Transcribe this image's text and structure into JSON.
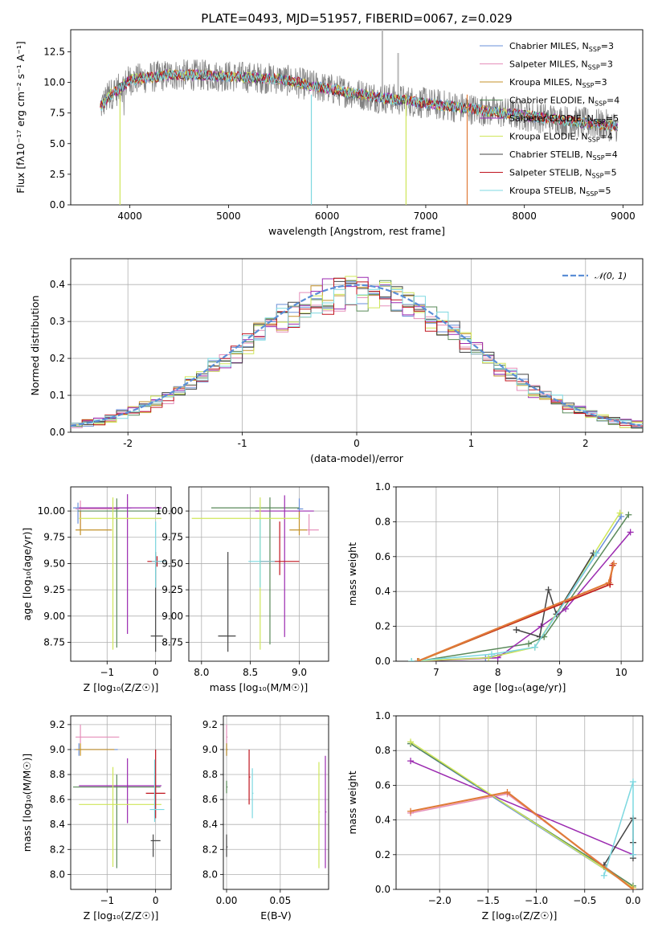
{
  "title": "PLATE=0493, MJD=51957, FIBERID=0067, z=0.029",
  "colors": {
    "Chabrier MILES": "#6a8fd8",
    "Salpeter MILES": "#e58fba",
    "Kroupa MILES": "#c4922a",
    "Chabrier ELODIE": "#5a8a5a",
    "Salpeter ELODIE": "#9b2ab0",
    "Kroupa ELODIE": "#cfe65a",
    "Chabrier STELIB": "#444444",
    "Salpeter STELIB": "#c0141e",
    "Kroupa STELIB": "#7dd8e0",
    "data": "#808080",
    "orange": "#e07b39",
    "gauss": "#5b8ed6"
  },
  "chart_data": [
    {
      "type": "line",
      "xlabel": "wavelength [Angstrom, rest frame]",
      "ylabel": "Flux [fλ10⁻¹⁷ erg cm⁻² s⁻¹ A⁻¹]",
      "xlim": [
        3400,
        9200
      ],
      "ylim": [
        0,
        14.3
      ],
      "xticks": [
        4000,
        5000,
        6000,
        7000,
        8000,
        9000
      ],
      "yticks": [
        0.0,
        2.5,
        5.0,
        7.5,
        10.0,
        12.5
      ],
      "ytick_labels": [
        "0.0",
        "2.5",
        "5.0",
        "7.5",
        "10.0",
        "12.5"
      ],
      "grid": false,
      "legend_position": "top-right",
      "legend": [
        {
          "name": "Chabrier MILES",
          "nssp": "3"
        },
        {
          "name": "Salpeter MILES",
          "nssp": "3"
        },
        {
          "name": "Kroupa MILES",
          "nssp": "3"
        },
        {
          "name": "Chabrier ELODIE",
          "nssp": "4"
        },
        {
          "name": "Salpeter ELODIE",
          "nssp": "5"
        },
        {
          "name": "Kroupa ELODIE",
          "nssp": "4"
        },
        {
          "name": "Chabrier STELIB",
          "nssp": "4"
        },
        {
          "name": "Salpeter STELIB",
          "nssp": "5"
        },
        {
          "name": "Kroupa STELIB",
          "nssp": "5"
        }
      ],
      "model_anchor": {
        "x": [
          3700,
          3800,
          3900,
          4000,
          4200,
          4400,
          4700,
          5000,
          5500,
          6000,
          6500,
          7000,
          7500,
          8000,
          8500,
          8950
        ],
        "y": [
          8.0,
          9.0,
          9.5,
          10.2,
          10.4,
          10.6,
          10.6,
          10.5,
          10.3,
          9.5,
          8.8,
          8.3,
          7.8,
          7.3,
          6.8,
          6.4
        ]
      },
      "dips": [
        {
          "series": "Kroupa ELODIE",
          "x": 3900,
          "y": 0
        },
        {
          "series": "Kroupa STELIB",
          "x": 5840,
          "y": 0
        },
        {
          "series": "Kroupa ELODIE",
          "x": 6800,
          "y": 0
        },
        {
          "series": "orange",
          "x": 7420,
          "y": 0
        }
      ]
    },
    {
      "type": "histogram",
      "xlabel": "(data-model)/error",
      "ylabel": "Normed distribution",
      "xlim": [
        -2.5,
        2.5
      ],
      "ylim": [
        0,
        0.47
      ],
      "xticks": [
        -2,
        -1,
        0,
        1,
        2
      ],
      "yticks": [
        0.0,
        0.1,
        0.2,
        0.3,
        0.4
      ],
      "ytick_labels": [
        "0.0",
        "0.1",
        "0.2",
        "0.3",
        "0.4"
      ],
      "grid": true,
      "legend": "𝒩(0, 1)",
      "legend_position": "top-right",
      "bin_width": 0.1,
      "curve": {
        "type": "gaussian",
        "mu": 0,
        "sigma": 1
      }
    },
    {
      "type": "errorbar",
      "xlabel": "Z [log₁₀(Z/Z☉)]",
      "ylabel": "age  [log₁₀(age/yr)]",
      "xlim": [
        -1.75,
        0.32
      ],
      "ylim": [
        8.57,
        10.23
      ],
      "xticks": [
        -1,
        0
      ],
      "xtick_labels": [
        "−1",
        "0"
      ],
      "yticks": [
        8.75,
        9.0,
        9.25,
        9.5,
        9.75,
        10.0
      ],
      "ytick_labels": [
        "8.75",
        "9.00",
        "9.25",
        "9.50",
        "9.75",
        "10.00"
      ],
      "grid": true,
      "points": [
        {
          "s": "Chabrier MILES",
          "x": -1.6,
          "y": 10.03,
          "xerr": [
            0.1,
            1.1
          ],
          "yerr": [
            0.15,
            0.05
          ]
        },
        {
          "s": "Salpeter MILES",
          "x": -1.55,
          "y": 10.02,
          "xerr": [
            0.1,
            0.8
          ],
          "yerr": [
            0.2,
            0.08
          ]
        },
        {
          "s": "Kroupa MILES",
          "x": -1.55,
          "y": 9.82,
          "xerr": [
            0.1,
            0.65
          ],
          "yerr": [
            0.05,
            0.18
          ]
        },
        {
          "s": "Chabrier ELODIE",
          "x": -0.8,
          "y": 10.0,
          "xerr": [
            0.8,
            0.9
          ],
          "yerr": [
            1.3,
            0.12
          ]
        },
        {
          "s": "Salpeter ELODIE",
          "x": -0.58,
          "y": 10.03,
          "xerr": [
            1.0,
            0.7
          ],
          "yerr": [
            1.2,
            0.13
          ]
        },
        {
          "s": "Kroupa ELODIE",
          "x": -0.88,
          "y": 9.93,
          "xerr": [
            0.7,
            1.0
          ],
          "yerr": [
            1.25,
            0.2
          ]
        },
        {
          "s": "Chabrier STELIB",
          "x": 0.0,
          "y": 8.81,
          "xerr": [
            0.1,
            0.15
          ],
          "yerr": [
            0.15,
            0.8
          ]
        },
        {
          "s": "Salpeter STELIB",
          "x": 0.03,
          "y": 9.52,
          "xerr": [
            0.2,
            0.2
          ],
          "yerr": [
            0.05,
            0.05
          ]
        },
        {
          "s": "Kroupa STELIB",
          "x": 0.0,
          "y": 9.52,
          "xerr": [
            0.08,
            0.22
          ],
          "yerr": [
            0.25,
            0.38
          ]
        }
      ]
    },
    {
      "type": "errorbar",
      "xlabel": "mass [log₁₀(M/M☉)]",
      "xlim": [
        7.87,
        9.3
      ],
      "ylim": [
        8.57,
        10.23
      ],
      "xticks": [
        8.0,
        8.5,
        9.0
      ],
      "xtick_labels": [
        "8.0",
        "8.5",
        "9.0"
      ],
      "yticks": [
        8.75,
        9.0,
        9.25,
        9.5,
        9.75,
        10.0
      ],
      "ytick_labels": [
        "8.75",
        "9.00",
        "9.25",
        "9.50",
        "9.75",
        "10.00"
      ],
      "grid": true,
      "points": [
        {
          "s": "Chabrier MILES",
          "x": 9.0,
          "y": 10.02,
          "xerr": [
            0.02,
            0.04
          ],
          "yerr": [
            0.1,
            0.1
          ]
        },
        {
          "s": "Salpeter MILES",
          "x": 9.1,
          "y": 9.82,
          "xerr": [
            0.03,
            0.1
          ],
          "yerr": [
            0.05,
            0.15
          ]
        },
        {
          "s": "Kroupa MILES",
          "x": 9.0,
          "y": 9.82,
          "xerr": [
            0.1,
            0.08
          ],
          "yerr": [
            0.05,
            0.18
          ]
        },
        {
          "s": "Chabrier ELODIE",
          "x": 8.7,
          "y": 10.03,
          "xerr": [
            0.6,
            0.3
          ],
          "yerr": [
            1.3,
            0.1
          ]
        },
        {
          "s": "Salpeter ELODIE",
          "x": 8.85,
          "y": 10.0,
          "xerr": [
            0.3,
            0.3
          ],
          "yerr": [
            1.2,
            0.15
          ]
        },
        {
          "s": "Kroupa ELODIE",
          "x": 8.6,
          "y": 9.93,
          "xerr": [
            0.7,
            0.4
          ],
          "yerr": [
            1.25,
            0.2
          ]
        },
        {
          "s": "Chabrier STELIB",
          "x": 8.27,
          "y": 8.81,
          "xerr": [
            0.1,
            0.08
          ],
          "yerr": [
            0.15,
            0.8
          ]
        },
        {
          "s": "Salpeter STELIB",
          "x": 8.8,
          "y": 9.52,
          "xerr": [
            0.2,
            0.2
          ],
          "yerr": [
            0.13,
            0.38
          ]
        },
        {
          "s": "Kroupa STELIB",
          "x": 8.6,
          "y": 9.52,
          "xerr": [
            0.12,
            0.15
          ],
          "yerr": [
            0.25,
            0.4
          ]
        }
      ]
    },
    {
      "type": "line",
      "xlabel": "age  [log₁₀(age/yr)]",
      "ylabel": "mass weight",
      "xlim": [
        6.35,
        10.35
      ],
      "ylim": [
        0,
        1
      ],
      "xticks": [
        7,
        8,
        9,
        10
      ],
      "yticks": [
        0.0,
        0.2,
        0.4,
        0.6,
        0.8,
        1.0
      ],
      "ytick_labels": [
        "0.0",
        "0.2",
        "0.4",
        "0.6",
        "0.8",
        "1.0"
      ],
      "grid": true,
      "series": [
        {
          "name": "Chabrier MILES",
          "x": [
            6.6,
            7.8,
            8.6,
            10.0
          ],
          "y": [
            0.0,
            0.02,
            0.08,
            0.83
          ]
        },
        {
          "name": "Salpeter MILES",
          "x": [
            6.7,
            9.8,
            9.88
          ],
          "y": [
            0.0,
            0.45,
            0.56
          ]
        },
        {
          "name": "Kroupa MILES",
          "x": [
            6.72,
            9.82,
            9.86
          ],
          "y": [
            0.0,
            0.44,
            0.55
          ]
        },
        {
          "name": "Chabrier ELODIE",
          "x": [
            6.7,
            8.5,
            8.75,
            10.12
          ],
          "y": [
            0.0,
            0.1,
            0.14,
            0.84
          ]
        },
        {
          "name": "Salpeter ELODIE",
          "x": [
            6.7,
            8.0,
            8.7,
            9.1,
            10.15
          ],
          "y": [
            0.0,
            0.02,
            0.2,
            0.3,
            0.74
          ]
        },
        {
          "name": "Kroupa ELODIE",
          "x": [
            6.6,
            7.85,
            8.6,
            9.98
          ],
          "y": [
            0.0,
            0.02,
            0.08,
            0.85
          ]
        },
        {
          "name": "Chabrier STELIB",
          "x": [
            8.3,
            8.68,
            8.82,
            8.95,
            9.55
          ],
          "y": [
            0.18,
            0.14,
            0.41,
            0.27,
            0.62
          ]
        },
        {
          "name": "Salpeter STELIB",
          "x": [
            6.7,
            9.82,
            9.86
          ],
          "y": [
            0.0,
            0.44,
            0.55
          ]
        },
        {
          "name": "Kroupa STELIB",
          "x": [
            6.6,
            7.9,
            8.6,
            9.6
          ],
          "y": [
            0.0,
            0.04,
            0.08,
            0.62
          ]
        },
        {
          "name": "orange",
          "x": [
            6.7,
            9.8,
            9.88
          ],
          "y": [
            0.0,
            0.45,
            0.56
          ]
        }
      ]
    },
    {
      "type": "errorbar",
      "xlabel": "Z [log₁₀(Z/Z☉)]",
      "ylabel": "mass [log₁₀(M/M☉)]",
      "xlim": [
        -1.75,
        0.32
      ],
      "ylim": [
        7.88,
        9.27
      ],
      "xticks": [
        -1,
        0
      ],
      "xtick_labels": [
        "−1",
        "0"
      ],
      "yticks": [
        8.0,
        8.2,
        8.4,
        8.6,
        8.8,
        9.0,
        9.2
      ],
      "ytick_labels": [
        "8.0",
        "8.2",
        "8.4",
        "8.6",
        "8.8",
        "9.0",
        "9.2"
      ],
      "grid": true,
      "points": [
        {
          "s": "Chabrier MILES",
          "x": -1.58,
          "y": 9.0,
          "xerr": [
            0.1,
            0.8
          ],
          "yerr": [
            0.05,
            0.05
          ]
        },
        {
          "s": "Salpeter MILES",
          "x": -1.55,
          "y": 9.1,
          "xerr": [
            0.1,
            0.8
          ],
          "yerr": [
            0.05,
            0.1
          ]
        },
        {
          "s": "Kroupa MILES",
          "x": -1.55,
          "y": 9.0,
          "xerr": [
            0.1,
            0.7
          ],
          "yerr": [
            0.05,
            0.05
          ]
        },
        {
          "s": "Chabrier ELODIE",
          "x": -0.8,
          "y": 8.7,
          "xerr": [
            0.9,
            0.9
          ],
          "yerr": [
            0.65,
            0.1
          ]
        },
        {
          "s": "Salpeter ELODIE",
          "x": -0.58,
          "y": 8.71,
          "xerr": [
            1.0,
            0.7
          ],
          "yerr": [
            0.3,
            0.22
          ]
        },
        {
          "s": "Kroupa ELODIE",
          "x": -0.88,
          "y": 8.56,
          "xerr": [
            0.7,
            1.0
          ],
          "yerr": [
            0.5,
            0.3
          ]
        },
        {
          "s": "Chabrier STELIB",
          "x": -0.05,
          "y": 8.27,
          "xerr": [
            0.05,
            0.15
          ],
          "yerr": [
            0.13,
            0.05
          ]
        },
        {
          "s": "Salpeter STELIB",
          "x": 0.0,
          "y": 8.65,
          "xerr": [
            0.2,
            0.2
          ],
          "yerr": [
            0.2,
            0.35
          ]
        },
        {
          "s": "Kroupa STELIB",
          "x": -0.02,
          "y": 8.52,
          "xerr": [
            0.1,
            0.2
          ],
          "yerr": [
            0.1,
            0.4
          ]
        }
      ]
    },
    {
      "type": "errorbar",
      "xlabel": "E(B-V)",
      "xlim": [
        -0.003,
        0.095
      ],
      "ylim": [
        7.88,
        9.27
      ],
      "xticks": [
        0.0,
        0.05
      ],
      "xtick_labels": [
        "0.00",
        "0.05"
      ],
      "yticks": [
        8.0,
        8.2,
        8.4,
        8.6,
        8.8,
        9.0,
        9.2
      ],
      "ytick_labels": [
        "8.0",
        "8.2",
        "8.4",
        "8.6",
        "8.8",
        "9.0",
        "9.2"
      ],
      "grid": true,
      "points": [
        {
          "s": "Chabrier MILES",
          "x": 0.0,
          "y": 9.0,
          "xerr": [
            0,
            0.001
          ],
          "yerr": [
            0.05,
            0.05
          ]
        },
        {
          "s": "Salpeter MILES",
          "x": 0.0,
          "y": 9.1,
          "xerr": [
            0,
            0.001
          ],
          "yerr": [
            0.05,
            0.1
          ]
        },
        {
          "s": "Kroupa MILES",
          "x": 0.0,
          "y": 9.0,
          "xerr": [
            0,
            0.001
          ],
          "yerr": [
            0.05,
            0.05
          ]
        },
        {
          "s": "Chabrier ELODIE",
          "x": 0.0,
          "y": 8.7,
          "xerr": [
            0,
            0.001
          ],
          "yerr": [
            0.05,
            0.05
          ]
        },
        {
          "s": "Salpeter ELODIE",
          "x": 0.092,
          "y": 8.5,
          "xerr": [
            0,
            0.001
          ],
          "yerr": [
            0.45,
            0.45
          ]
        },
        {
          "s": "Kroupa ELODIE",
          "x": 0.086,
          "y": 8.5,
          "xerr": [
            0,
            0.001
          ],
          "yerr": [
            0.45,
            0.4
          ]
        },
        {
          "s": "Chabrier STELIB",
          "x": 0.0,
          "y": 8.22,
          "xerr": [
            0,
            0.001
          ],
          "yerr": [
            0.08,
            0.1
          ]
        },
        {
          "s": "Salpeter STELIB",
          "x": 0.021,
          "y": 8.78,
          "xerr": [
            0,
            0.001
          ],
          "yerr": [
            0.22,
            0.22
          ]
        },
        {
          "s": "Kroupa STELIB",
          "x": 0.024,
          "y": 8.65,
          "xerr": [
            0,
            0.001
          ],
          "yerr": [
            0.2,
            0.2
          ]
        }
      ]
    },
    {
      "type": "line",
      "xlabel": "Z [log₁₀(Z/Z☉)]",
      "ylabel": "mass weight",
      "xlim": [
        -2.45,
        0.1
      ],
      "ylim": [
        0,
        1
      ],
      "xticks": [
        -2.0,
        -1.5,
        -1.0,
        -0.5,
        0.0
      ],
      "xtick_labels": [
        "−2.0",
        "−1.5",
        "−1.0",
        "−0.5",
        "0.0"
      ],
      "yticks": [
        0.0,
        0.2,
        0.4,
        0.6,
        0.8,
        1.0
      ],
      "ytick_labels": [
        "0.0",
        "0.2",
        "0.4",
        "0.6",
        "0.8",
        "1.0"
      ],
      "grid": true,
      "series": [
        {
          "name": "Chabrier MILES",
          "x": [
            -2.3,
            0.0
          ],
          "y": [
            0.84,
            0.01
          ]
        },
        {
          "name": "Salpeter MILES",
          "x": [
            -2.3,
            -1.3,
            0.0
          ],
          "y": [
            0.44,
            0.55,
            0.01
          ]
        },
        {
          "name": "Chabrier ELODIE",
          "x": [
            -2.3,
            -0.3,
            0.0
          ],
          "y": [
            0.84,
            0.13,
            0.02
          ]
        },
        {
          "name": "Salpeter ELODIE",
          "x": [
            -2.3,
            0.0
          ],
          "y": [
            0.74,
            0.2
          ]
        },
        {
          "name": "Kroupa ELODIE",
          "x": [
            -2.3,
            0.0
          ],
          "y": [
            0.85,
            0.01
          ]
        },
        {
          "name": "Chabrier STELIB",
          "x": [
            -0.3,
            0.0,
            0.0,
            0.0
          ],
          "y": [
            0.14,
            0.41,
            0.27,
            0.18
          ]
        },
        {
          "name": "Kroupa STELIB",
          "x": [
            -0.3,
            0.0,
            0.0
          ],
          "y": [
            0.08,
            0.62,
            0.2
          ]
        },
        {
          "name": "orange",
          "x": [
            -2.3,
            -1.3,
            0.0
          ],
          "y": [
            0.45,
            0.56,
            0.0
          ]
        }
      ]
    }
  ]
}
